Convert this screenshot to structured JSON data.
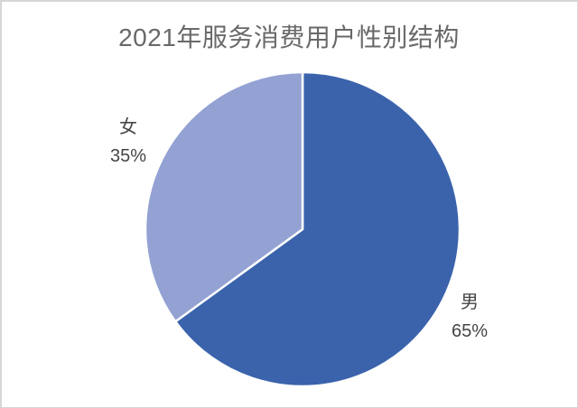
{
  "page": {
    "background_color": "#ffffff",
    "frame_border_color": "#d6d6d6"
  },
  "chart_data": {
    "type": "pie",
    "title": "2021年服务消费用户性别结构",
    "categories": [
      "男",
      "女"
    ],
    "values": [
      65,
      35
    ],
    "unit": "%",
    "slices": [
      {
        "label": "男",
        "value": 65,
        "display": "65%",
        "color": "#3B63AC"
      },
      {
        "label": "女",
        "value": 35,
        "display": "35%",
        "color": "#93A1D3"
      }
    ],
    "start_angle_deg": 0,
    "direction": "clockwise",
    "slice_border_color": "#ffffff",
    "slice_border_width": 2.5,
    "label_position": "outside",
    "legend": "none",
    "title_color": "#696969",
    "label_color": "#454545"
  }
}
